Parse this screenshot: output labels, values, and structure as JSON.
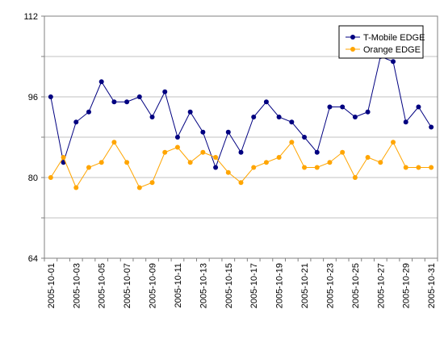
{
  "chart_data": {
    "type": "line",
    "title": "",
    "xlabel": "",
    "ylabel": "",
    "ylim": [
      64,
      112
    ],
    "yticks": [
      64,
      72,
      80,
      88,
      96,
      104,
      112
    ],
    "ytick_labels": [
      "64",
      "80",
      "96",
      "112"
    ],
    "x": [
      "2005-10-01",
      "2005-10-02",
      "2005-10-03",
      "2005-10-04",
      "2005-10-05",
      "2005-10-06",
      "2005-10-07",
      "2005-10-08",
      "2005-10-09",
      "2005-10-10",
      "2005-10-11",
      "2005-10-12",
      "2005-10-13",
      "2005-10-14",
      "2005-10-15",
      "2005-10-16",
      "2005-10-17",
      "2005-10-18",
      "2005-10-19",
      "2005-10-20",
      "2005-10-21",
      "2005-10-22",
      "2005-10-23",
      "2005-10-24",
      "2005-10-25",
      "2005-10-26",
      "2005-10-27",
      "2005-10-28",
      "2005-10-29",
      "2005-10-30",
      "2005-10-31"
    ],
    "xtick_labels": [
      "2005-10-01",
      "2005-10-03",
      "2005-10-05",
      "2005-10-07",
      "2005-10-09",
      "2005-10-11",
      "2005-10-13",
      "2005-10-15",
      "2005-10-17",
      "2005-10-19",
      "2005-10-21",
      "2005-10-23",
      "2005-10-25",
      "2005-10-27",
      "2005-10-29",
      "2005-10-31"
    ],
    "grid": "horizontal",
    "legend_position": "top-right",
    "series": [
      {
        "name": "T-Mobile EDGE",
        "color": "#000080",
        "values": [
          96,
          83,
          91,
          93,
          99,
          95,
          95,
          96,
          92,
          97,
          88,
          93,
          89,
          82,
          89,
          85,
          92,
          95,
          92,
          91,
          88,
          85,
          94,
          94,
          92,
          93,
          104,
          103,
          91,
          94,
          90
        ]
      },
      {
        "name": "Orange EDGE",
        "color": "#FFA500",
        "values": [
          80,
          84,
          78,
          82,
          83,
          87,
          83,
          78,
          79,
          85,
          86,
          83,
          85,
          84,
          81,
          79,
          82,
          83,
          84,
          87,
          82,
          82,
          83,
          85,
          80,
          84,
          83,
          87,
          82,
          82,
          82
        ]
      }
    ]
  }
}
